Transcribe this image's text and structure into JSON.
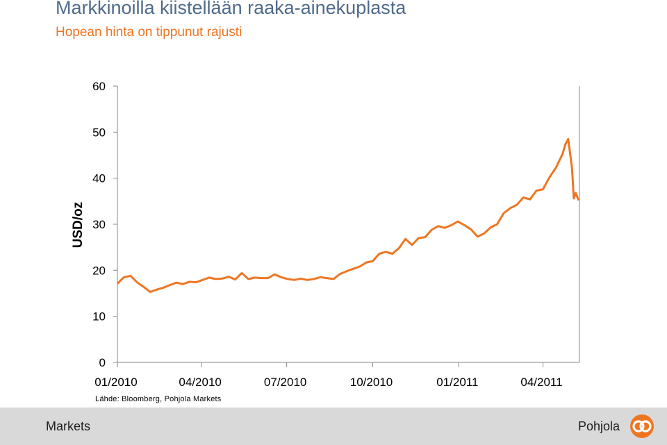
{
  "header": {
    "title": "Markkinoilla kiistellään raaka-ainekuplasta",
    "subtitle": "Hopean hinta on tippunut rajusti"
  },
  "source": "Lähde: Bloomberg, Pohjola Markets",
  "footer": {
    "left_text": "Markets",
    "brand_text": "Pohjola",
    "logo_icon": "pohjola-logo-icon"
  },
  "colors": {
    "series": "#ee7623",
    "title": "#4f6b8a",
    "subtitle": "#ee7623",
    "footer_bg": "#d9d9d9"
  },
  "chart_data": {
    "type": "line",
    "title": "",
    "xlabel": "",
    "ylabel": "USD/oz",
    "ylim": [
      0,
      60
    ],
    "yticks": [
      "0",
      "10",
      "20",
      "30",
      "40",
      "50",
      "60"
    ],
    "xlim": [
      "2010-01-01",
      "2011-05-10"
    ],
    "xticks": [
      {
        "date": "2010-01-01",
        "label": "01/2010"
      },
      {
        "date": "2010-04-01",
        "label": "04/2010"
      },
      {
        "date": "2010-07-01",
        "label": "07/2010"
      },
      {
        "date": "2010-10-01",
        "label": "10/2010"
      },
      {
        "date": "2011-01-01",
        "label": "01/2011"
      },
      {
        "date": "2011-04-01",
        "label": "04/2011"
      }
    ],
    "grid": false,
    "series": [
      {
        "color": "#ee7623",
        "x": [
          "2010-01-01",
          "2010-01-08",
          "2010-01-15",
          "2010-01-22",
          "2010-01-29",
          "2010-02-05",
          "2010-02-12",
          "2010-02-19",
          "2010-02-26",
          "2010-03-05",
          "2010-03-12",
          "2010-03-19",
          "2010-03-26",
          "2010-04-02",
          "2010-04-09",
          "2010-04-16",
          "2010-04-23",
          "2010-04-30",
          "2010-05-07",
          "2010-05-14",
          "2010-05-21",
          "2010-05-28",
          "2010-06-04",
          "2010-06-11",
          "2010-06-18",
          "2010-06-25",
          "2010-07-02",
          "2010-07-09",
          "2010-07-16",
          "2010-07-23",
          "2010-07-30",
          "2010-08-06",
          "2010-08-13",
          "2010-08-20",
          "2010-08-27",
          "2010-09-03",
          "2010-09-10",
          "2010-09-17",
          "2010-09-24",
          "2010-10-01",
          "2010-10-08",
          "2010-10-15",
          "2010-10-22",
          "2010-10-29",
          "2010-11-05",
          "2010-11-12",
          "2010-11-19",
          "2010-11-26",
          "2010-12-03",
          "2010-12-10",
          "2010-12-17",
          "2010-12-24",
          "2010-12-31",
          "2011-01-07",
          "2011-01-14",
          "2011-01-21",
          "2011-01-28",
          "2011-02-04",
          "2011-02-11",
          "2011-02-18",
          "2011-02-25",
          "2011-03-04",
          "2011-03-11",
          "2011-03-18",
          "2011-03-25",
          "2011-04-01",
          "2011-04-08",
          "2011-04-15",
          "2011-04-22",
          "2011-04-25",
          "2011-04-28",
          "2011-05-02",
          "2011-05-04",
          "2011-05-06",
          "2011-05-09"
        ],
        "y": [
          17.1,
          18.5,
          18.8,
          17.4,
          16.4,
          15.3,
          15.8,
          16.2,
          16.8,
          17.3,
          17.0,
          17.5,
          17.4,
          17.9,
          18.4,
          18.1,
          18.2,
          18.6,
          18.0,
          19.4,
          18.1,
          18.4,
          18.3,
          18.3,
          19.1,
          18.5,
          18.1,
          17.9,
          18.2,
          17.9,
          18.1,
          18.5,
          18.3,
          18.1,
          19.2,
          19.8,
          20.3,
          20.8,
          21.7,
          22.0,
          23.6,
          24.0,
          23.6,
          24.8,
          26.8,
          25.5,
          27.0,
          27.2,
          28.8,
          29.6,
          29.2,
          29.8,
          30.6,
          29.8,
          28.9,
          27.3,
          28.0,
          29.3,
          30.0,
          32.4,
          33.5,
          34.2,
          35.8,
          35.4,
          37.3,
          37.6,
          40.2,
          42.3,
          45.3,
          47.4,
          48.5,
          42.3,
          35.6,
          36.8,
          35.2
        ]
      }
    ]
  }
}
